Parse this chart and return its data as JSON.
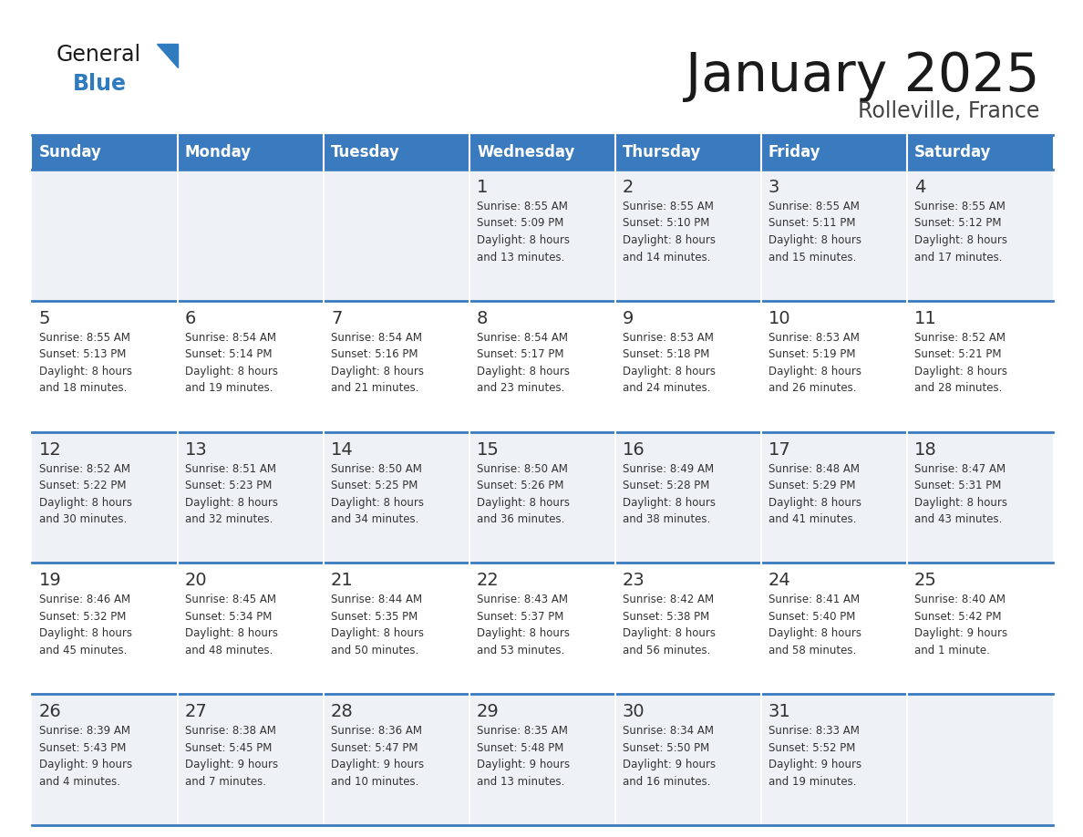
{
  "title": "January 2025",
  "subtitle": "Rolleville, France",
  "header_color": "#3a7abf",
  "header_text_color": "#ffffff",
  "cell_bg": "#eef2f7",
  "text_color": "#333333",
  "days_of_week": [
    "Sunday",
    "Monday",
    "Tuesday",
    "Wednesday",
    "Thursday",
    "Friday",
    "Saturday"
  ],
  "logo_general_color": "#1a1a1a",
  "logo_blue_color": "#2e7bbf",
  "logo_triangle_color": "#2e7bbf",
  "title_color": "#1a1a1a",
  "subtitle_color": "#444444",
  "separator_color": "#3a7abf",
  "calendar_data": [
    [
      {
        "day": "",
        "info": ""
      },
      {
        "day": "",
        "info": ""
      },
      {
        "day": "",
        "info": ""
      },
      {
        "day": "1",
        "info": "Sunrise: 8:55 AM\nSunset: 5:09 PM\nDaylight: 8 hours\nand 13 minutes."
      },
      {
        "day": "2",
        "info": "Sunrise: 8:55 AM\nSunset: 5:10 PM\nDaylight: 8 hours\nand 14 minutes."
      },
      {
        "day": "3",
        "info": "Sunrise: 8:55 AM\nSunset: 5:11 PM\nDaylight: 8 hours\nand 15 minutes."
      },
      {
        "day": "4",
        "info": "Sunrise: 8:55 AM\nSunset: 5:12 PM\nDaylight: 8 hours\nand 17 minutes."
      }
    ],
    [
      {
        "day": "5",
        "info": "Sunrise: 8:55 AM\nSunset: 5:13 PM\nDaylight: 8 hours\nand 18 minutes."
      },
      {
        "day": "6",
        "info": "Sunrise: 8:54 AM\nSunset: 5:14 PM\nDaylight: 8 hours\nand 19 minutes."
      },
      {
        "day": "7",
        "info": "Sunrise: 8:54 AM\nSunset: 5:16 PM\nDaylight: 8 hours\nand 21 minutes."
      },
      {
        "day": "8",
        "info": "Sunrise: 8:54 AM\nSunset: 5:17 PM\nDaylight: 8 hours\nand 23 minutes."
      },
      {
        "day": "9",
        "info": "Sunrise: 8:53 AM\nSunset: 5:18 PM\nDaylight: 8 hours\nand 24 minutes."
      },
      {
        "day": "10",
        "info": "Sunrise: 8:53 AM\nSunset: 5:19 PM\nDaylight: 8 hours\nand 26 minutes."
      },
      {
        "day": "11",
        "info": "Sunrise: 8:52 AM\nSunset: 5:21 PM\nDaylight: 8 hours\nand 28 minutes."
      }
    ],
    [
      {
        "day": "12",
        "info": "Sunrise: 8:52 AM\nSunset: 5:22 PM\nDaylight: 8 hours\nand 30 minutes."
      },
      {
        "day": "13",
        "info": "Sunrise: 8:51 AM\nSunset: 5:23 PM\nDaylight: 8 hours\nand 32 minutes."
      },
      {
        "day": "14",
        "info": "Sunrise: 8:50 AM\nSunset: 5:25 PM\nDaylight: 8 hours\nand 34 minutes."
      },
      {
        "day": "15",
        "info": "Sunrise: 8:50 AM\nSunset: 5:26 PM\nDaylight: 8 hours\nand 36 minutes."
      },
      {
        "day": "16",
        "info": "Sunrise: 8:49 AM\nSunset: 5:28 PM\nDaylight: 8 hours\nand 38 minutes."
      },
      {
        "day": "17",
        "info": "Sunrise: 8:48 AM\nSunset: 5:29 PM\nDaylight: 8 hours\nand 41 minutes."
      },
      {
        "day": "18",
        "info": "Sunrise: 8:47 AM\nSunset: 5:31 PM\nDaylight: 8 hours\nand 43 minutes."
      }
    ],
    [
      {
        "day": "19",
        "info": "Sunrise: 8:46 AM\nSunset: 5:32 PM\nDaylight: 8 hours\nand 45 minutes."
      },
      {
        "day": "20",
        "info": "Sunrise: 8:45 AM\nSunset: 5:34 PM\nDaylight: 8 hours\nand 48 minutes."
      },
      {
        "day": "21",
        "info": "Sunrise: 8:44 AM\nSunset: 5:35 PM\nDaylight: 8 hours\nand 50 minutes."
      },
      {
        "day": "22",
        "info": "Sunrise: 8:43 AM\nSunset: 5:37 PM\nDaylight: 8 hours\nand 53 minutes."
      },
      {
        "day": "23",
        "info": "Sunrise: 8:42 AM\nSunset: 5:38 PM\nDaylight: 8 hours\nand 56 minutes."
      },
      {
        "day": "24",
        "info": "Sunrise: 8:41 AM\nSunset: 5:40 PM\nDaylight: 8 hours\nand 58 minutes."
      },
      {
        "day": "25",
        "info": "Sunrise: 8:40 AM\nSunset: 5:42 PM\nDaylight: 9 hours\nand 1 minute."
      }
    ],
    [
      {
        "day": "26",
        "info": "Sunrise: 8:39 AM\nSunset: 5:43 PM\nDaylight: 9 hours\nand 4 minutes."
      },
      {
        "day": "27",
        "info": "Sunrise: 8:38 AM\nSunset: 5:45 PM\nDaylight: 9 hours\nand 7 minutes."
      },
      {
        "day": "28",
        "info": "Sunrise: 8:36 AM\nSunset: 5:47 PM\nDaylight: 9 hours\nand 10 minutes."
      },
      {
        "day": "29",
        "info": "Sunrise: 8:35 AM\nSunset: 5:48 PM\nDaylight: 9 hours\nand 13 minutes."
      },
      {
        "day": "30",
        "info": "Sunrise: 8:34 AM\nSunset: 5:50 PM\nDaylight: 9 hours\nand 16 minutes."
      },
      {
        "day": "31",
        "info": "Sunrise: 8:33 AM\nSunset: 5:52 PM\nDaylight: 9 hours\nand 19 minutes."
      },
      {
        "day": "",
        "info": ""
      }
    ]
  ]
}
